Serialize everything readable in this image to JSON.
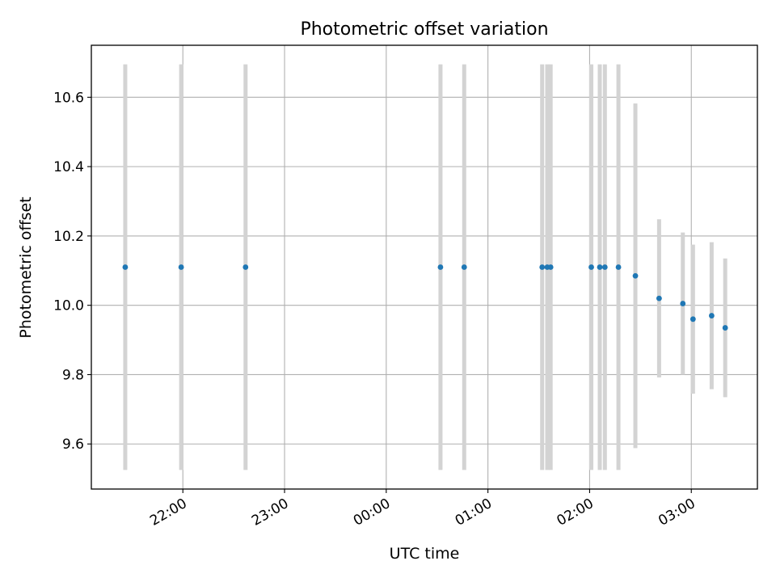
{
  "chart_data": {
    "type": "scatter",
    "title": "Photometric offset variation",
    "xlabel": "UTC time",
    "ylabel": "Photometric offset",
    "x_axis": "time",
    "xlim": [
      "2000-01-01T21:06:00",
      "2000-01-02T03:39:00"
    ],
    "ylim": [
      9.47,
      10.75
    ],
    "xticks": [
      {
        "t": "2000-01-01T22:00:00",
        "label": "22:00"
      },
      {
        "t": "2000-01-01T23:00:00",
        "label": "23:00"
      },
      {
        "t": "2000-01-02T00:00:00",
        "label": "00:00"
      },
      {
        "t": "2000-01-02T01:00:00",
        "label": "01:00"
      },
      {
        "t": "2000-01-02T02:00:00",
        "label": "02:00"
      },
      {
        "t": "2000-01-02T03:00:00",
        "label": "03:00"
      }
    ],
    "yticks": [
      {
        "v": 9.6,
        "label": "9.6"
      },
      {
        "v": 9.8,
        "label": "9.8"
      },
      {
        "v": 10.0,
        "label": "10.0"
      },
      {
        "v": 10.2,
        "label": "10.2"
      },
      {
        "v": 10.4,
        "label": "10.4"
      },
      {
        "v": 10.6,
        "label": "10.6"
      }
    ],
    "grid": true,
    "point_color": "#1f77b4",
    "errorbar_color": "#d3d3d3",
    "points": [
      {
        "t": "2000-01-01T21:26:00",
        "y": 10.11,
        "err": 0.585
      },
      {
        "t": "2000-01-01T21:59:00",
        "y": 10.11,
        "err": 0.585
      },
      {
        "t": "2000-01-01T22:37:00",
        "y": 10.11,
        "err": 0.585
      },
      {
        "t": "2000-01-02T00:32:00",
        "y": 10.11,
        "err": 0.585
      },
      {
        "t": "2000-01-02T00:46:00",
        "y": 10.11,
        "err": 0.585
      },
      {
        "t": "2000-01-02T01:32:00",
        "y": 10.11,
        "err": 0.585
      },
      {
        "t": "2000-01-02T01:35:00",
        "y": 10.11,
        "err": 0.585
      },
      {
        "t": "2000-01-02T01:37:00",
        "y": 10.11,
        "err": 0.585
      },
      {
        "t": "2000-01-02T02:01:00",
        "y": 10.11,
        "err": 0.585
      },
      {
        "t": "2000-01-02T02:06:00",
        "y": 10.11,
        "err": 0.585
      },
      {
        "t": "2000-01-02T02:09:00",
        "y": 10.11,
        "err": 0.585
      },
      {
        "t": "2000-01-02T02:17:00",
        "y": 10.11,
        "err": 0.585
      },
      {
        "t": "2000-01-02T02:27:00",
        "y": 10.085,
        "err": 0.497
      },
      {
        "t": "2000-01-02T02:41:00",
        "y": 10.02,
        "err": 0.228
      },
      {
        "t": "2000-01-02T02:55:00",
        "y": 10.005,
        "err": 0.205
      },
      {
        "t": "2000-01-02T03:01:00",
        "y": 9.96,
        "err": 0.215
      },
      {
        "t": "2000-01-02T03:12:00",
        "y": 9.97,
        "err": 0.212
      },
      {
        "t": "2000-01-02T03:20:00",
        "y": 9.935,
        "err": 0.2
      }
    ]
  }
}
